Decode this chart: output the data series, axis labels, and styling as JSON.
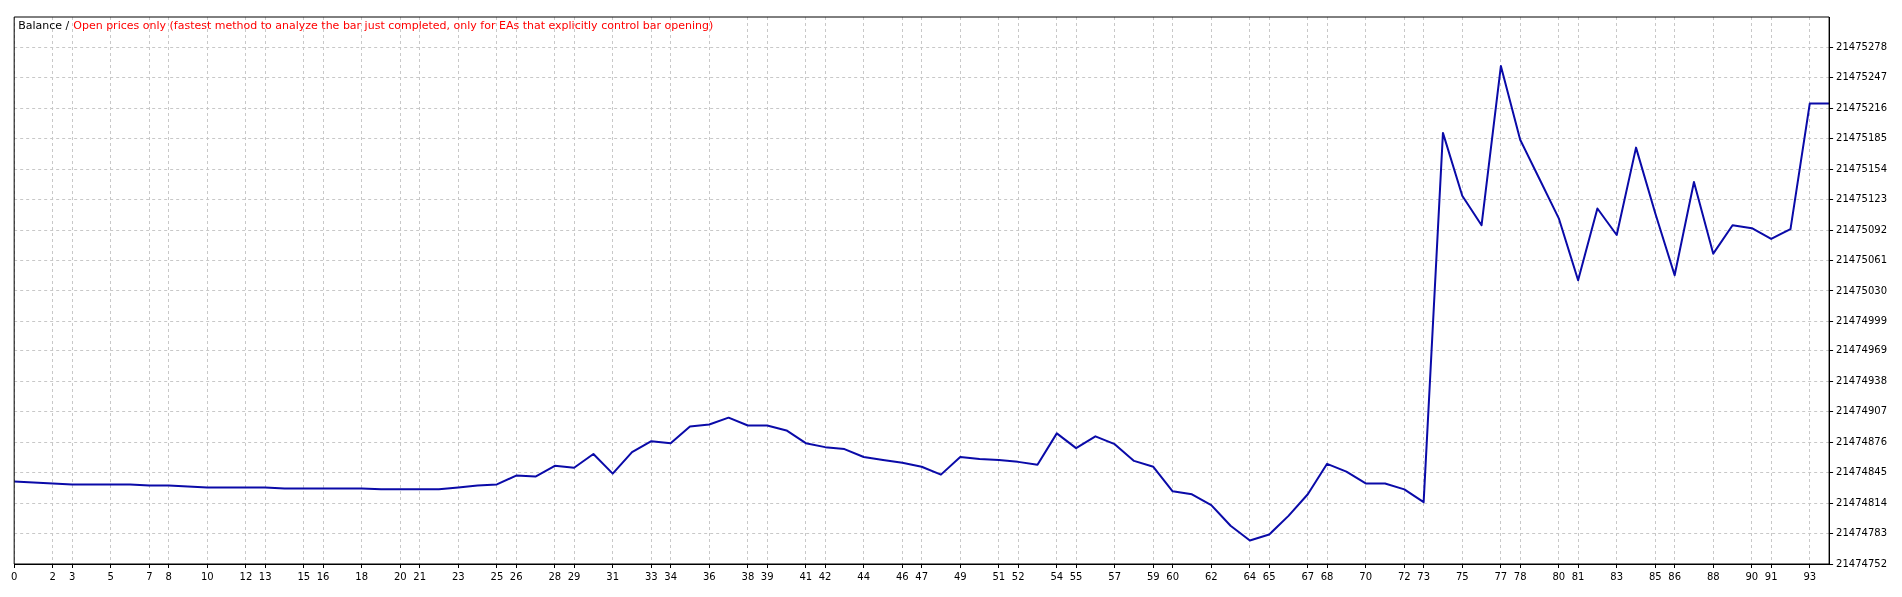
{
  "chart_data": {
    "type": "line",
    "title": "Balance /",
    "subtitle": "Open prices only (fastest method to analyze the bar just completed, only for EAs that explicitly control bar opening)",
    "x": [
      0,
      1,
      2,
      3,
      4,
      5,
      6,
      7,
      8,
      9,
      10,
      11,
      12,
      13,
      14,
      15,
      16,
      17,
      18,
      19,
      20,
      21,
      22,
      23,
      24,
      25,
      26,
      27,
      28,
      29,
      30,
      31,
      32,
      33,
      34,
      35,
      36,
      37,
      38,
      39,
      40,
      41,
      42,
      43,
      44,
      45,
      46,
      47,
      48,
      49,
      50,
      51,
      52,
      53,
      54,
      55,
      56,
      57,
      58,
      59,
      60,
      61,
      62,
      63,
      64,
      65,
      66,
      67,
      68,
      69,
      70,
      71,
      72,
      73,
      74,
      75,
      76,
      77,
      78,
      79,
      80,
      81,
      82,
      83,
      84,
      85,
      86,
      87,
      88,
      89,
      90,
      91,
      92,
      93,
      94
    ],
    "series": [
      {
        "color": "#0a0aa8",
        "values": [
          21474836,
          21474835,
          21474834,
          21474833,
          21474833,
          21474833,
          21474833,
          21474832,
          21474832,
          21474831,
          21474830,
          21474830,
          21474830,
          21474830,
          21474829,
          21474829,
          21474829,
          21474829,
          21474829,
          21474828,
          21474828,
          21474828,
          21474828,
          21474830,
          21474832,
          21474833,
          21474842,
          21474841,
          21474852,
          21474850,
          21474864,
          21474844,
          21474866,
          21474877,
          21474875,
          21474892,
          21474894,
          21474901,
          21474893,
          21474893,
          21474888,
          21474875,
          21474871,
          21474869,
          21474861,
          21474858,
          21474855,
          21474851,
          21474843,
          21474861,
          21474859,
          21474858,
          21474856,
          21474853,
          21474885,
          21474870,
          21474882,
          21474874,
          21474857,
          21474851,
          21474826,
          21474823,
          21474812,
          21474791,
          21474776,
          21474782,
          21474801,
          21474823,
          21474854,
          21474846,
          21474834,
          21474834,
          21474828,
          21474815,
          21475191,
          21475127,
          21475097,
          21475259,
          21475184,
          21475144,
          21475104,
          21475041,
          21475114,
          21475087,
          21475176,
          21475109,
          21475046,
          21475141,
          21475068,
          21475097,
          21475094,
          21475083,
          21475093,
          21475221,
          21475221
        ]
      }
    ],
    "xlim": [
      0,
      94
    ],
    "xticks": [
      0,
      2,
      3,
      5,
      7,
      8,
      10,
      12,
      13,
      15,
      16,
      18,
      20,
      21,
      23,
      25,
      26,
      28,
      29,
      31,
      33,
      34,
      36,
      38,
      39,
      41,
      42,
      44,
      46,
      47,
      49,
      51,
      52,
      54,
      55,
      57,
      59,
      60,
      62,
      64,
      65,
      67,
      68,
      70,
      72,
      73,
      75,
      77,
      78,
      80,
      81,
      83,
      85,
      86,
      88,
      90,
      91,
      93
    ],
    "ylim": [
      21474752,
      21475309
    ],
    "yticks": [
      21474752,
      21474783,
      21474814,
      21474845,
      21474876,
      21474907,
      21474938,
      21474969,
      21474999,
      21475030,
      21475061,
      21475092,
      21475123,
      21475154,
      21475185,
      21475216,
      21475247,
      21475278
    ],
    "grid": true,
    "legend": false,
    "marker": "none",
    "line_style": "solid"
  }
}
